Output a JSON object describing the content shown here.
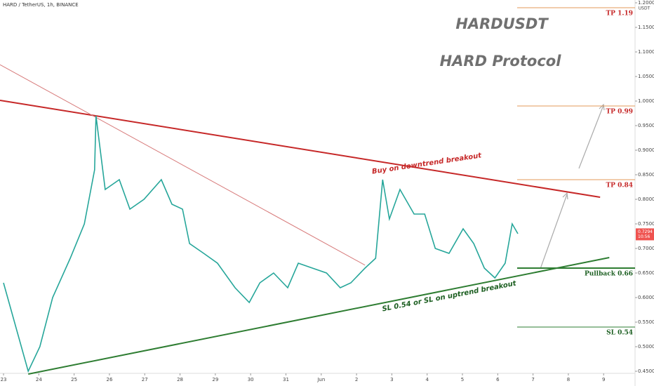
{
  "chart_data": {
    "type": "line",
    "header": "HARD / TetherUS, 1h, BINANCE",
    "title": "HARDUSDT",
    "subtitle": "HARD Protocol",
    "axis_unit": "USDT",
    "last_price": 0.7294,
    "last_time": "10:56",
    "xlim": [
      -0.1,
      17.89
    ],
    "xticks": [
      {
        "value": 0,
        "label": "23"
      },
      {
        "value": 1,
        "label": "24"
      },
      {
        "value": 2,
        "label": "25"
      },
      {
        "value": 3,
        "label": "26"
      },
      {
        "value": 4,
        "label": "27"
      },
      {
        "value": 5,
        "label": "28"
      },
      {
        "value": 6,
        "label": "29"
      },
      {
        "value": 7,
        "label": "30"
      },
      {
        "value": 8,
        "label": "31"
      },
      {
        "value": 9,
        "label": "Jun"
      },
      {
        "value": 10,
        "label": "2"
      },
      {
        "value": 11,
        "label": "3"
      },
      {
        "value": 12,
        "label": "4"
      },
      {
        "value": 13,
        "label": "5"
      },
      {
        "value": 14,
        "label": "6"
      },
      {
        "value": 15,
        "label": "7"
      },
      {
        "value": 16,
        "label": "8"
      },
      {
        "value": 17,
        "label": "9"
      }
    ],
    "ylim": [
      0.4457,
      1.2057
    ],
    "yticks": [
      {
        "value": 1.2,
        "label": "1.2000"
      },
      {
        "value": 1.15,
        "label": "1.1500"
      },
      {
        "value": 1.1,
        "label": "1.1000"
      },
      {
        "value": 1.05,
        "label": "1.0500"
      },
      {
        "value": 1.0,
        "label": "1.0000"
      },
      {
        "value": 0.95,
        "label": "0.9500"
      },
      {
        "value": 0.9,
        "label": "0.9000"
      },
      {
        "value": 0.85,
        "label": "0.8500"
      },
      {
        "value": 0.8,
        "label": "0.8000"
      },
      {
        "value": 0.75,
        "label": "0.7500"
      },
      {
        "value": 0.7,
        "label": "0.7000"
      },
      {
        "value": 0.65,
        "label": "0.6500"
      },
      {
        "value": 0.6,
        "label": "0.6000"
      },
      {
        "value": 0.55,
        "label": "0.5500"
      },
      {
        "value": 0.5,
        "label": "0.5000"
      },
      {
        "value": 0.45,
        "label": "0.4500"
      }
    ],
    "series": [
      {
        "name": "HARDUSDT",
        "color": "#26a69a",
        "x": [
          0,
          0.7,
          1.03,
          1.39,
          1.89,
          2.29,
          2.58,
          2.62,
          2.88,
          3.28,
          3.58,
          3.98,
          4.47,
          4.77,
          5.07,
          5.27,
          5.67,
          6.06,
          6.56,
          6.96,
          7.26,
          7.65,
          8.05,
          8.35,
          8.75,
          9.15,
          9.54,
          9.84,
          10.24,
          10.54,
          10.74,
          10.93,
          11.23,
          11.63,
          11.93,
          12.23,
          12.62,
          13.02,
          13.32,
          13.62,
          13.92,
          14.21,
          14.41,
          14.57
        ],
        "values": [
          0.63,
          0.45,
          0.5,
          0.6,
          0.68,
          0.75,
          0.86,
          0.97,
          0.82,
          0.84,
          0.78,
          0.8,
          0.84,
          0.79,
          0.78,
          0.71,
          0.69,
          0.67,
          0.62,
          0.59,
          0.63,
          0.65,
          0.62,
          0.67,
          0.66,
          0.65,
          0.62,
          0.63,
          0.66,
          0.68,
          0.84,
          0.76,
          0.82,
          0.77,
          0.77,
          0.7,
          0.69,
          0.74,
          0.71,
          0.66,
          0.64,
          0.67,
          0.75,
          0.73
        ]
      }
    ],
    "trendlines": [
      {
        "color": "#c62828",
        "x": [
          -0.1,
          16.9
        ],
        "values": [
          1.0014,
          0.8043
        ]
      },
      {
        "color": "#d77a7a",
        "x": [
          -0.1,
          10.24
        ],
        "values": [
          1.074,
          0.666
        ]
      },
      {
        "color": "#2e7d32",
        "x": [
          0.7,
          17.16
        ],
        "values": [
          0.4443,
          0.6814
        ]
      }
    ],
    "levels": [
      {
        "label": "TP 1.19",
        "value": 1.19,
        "color": "#c62828"
      },
      {
        "label": "TP 0.99",
        "value": 0.99,
        "color": "#c62828"
      },
      {
        "label": "TP 0.84",
        "value": 0.84,
        "color": "#c62828"
      },
      {
        "label": "Pullback 0.66",
        "value": 0.66,
        "color": "#1b5e20"
      },
      {
        "label": "SL 0.54",
        "value": 0.54,
        "color": "#1b5e20"
      }
    ],
    "annotations": [
      {
        "text": "Buy on downtrend breakout",
        "color": "#c62828"
      },
      {
        "text": "SL 0.54 or SL on uptrend breakout",
        "color": "#1b5e20"
      }
    ]
  }
}
